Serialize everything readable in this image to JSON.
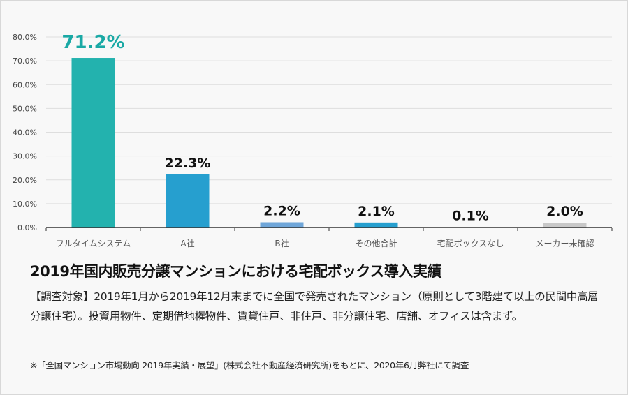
{
  "chart_data": {
    "type": "bar",
    "categories": [
      "フルタイムシステム",
      "A社",
      "B社",
      "その他合計",
      "宅配ボックスなし",
      "メーカー未確認"
    ],
    "values": [
      71.2,
      22.3,
      2.2,
      2.1,
      0.1,
      2.0
    ],
    "data_labels": [
      "71.2%",
      "22.3%",
      "2.2%",
      "2.1%",
      "0.1%",
      "2.0%"
    ],
    "bar_colors": [
      "#23b2ae",
      "#269fcf",
      "#6fa6d9",
      "#269fcf",
      "#269fcf",
      "#c8c8c8"
    ],
    "highlight_label_color": "#1aa9a5",
    "ylim": [
      0,
      80
    ],
    "yticks": [
      "0.0%",
      "10.0%",
      "20.0%",
      "30.0%",
      "40.0%",
      "50.0%",
      "60.0%",
      "70.0%",
      "80.0%"
    ],
    "grid": true,
    "title": "",
    "xlabel": "",
    "ylabel": ""
  },
  "caption": {
    "title": "2019年国内販売分譲マンションにおける宅配ボックス導入実績",
    "description": "【調査対象】2019年1月から2019年12月末までに全国で発売されたマンション（原則として3階建て以上の民間中高層分譲住宅）。投資用物件、定期借地権物件、賃貸住戸、非住戸、非分譲住宅、店舗、オフィスは含まず。",
    "note": "※「全国マンション市場動向 2019年実績・展望」(株式会社不動産経済研究所)をもとに、2020年6月弊社にて調査"
  }
}
